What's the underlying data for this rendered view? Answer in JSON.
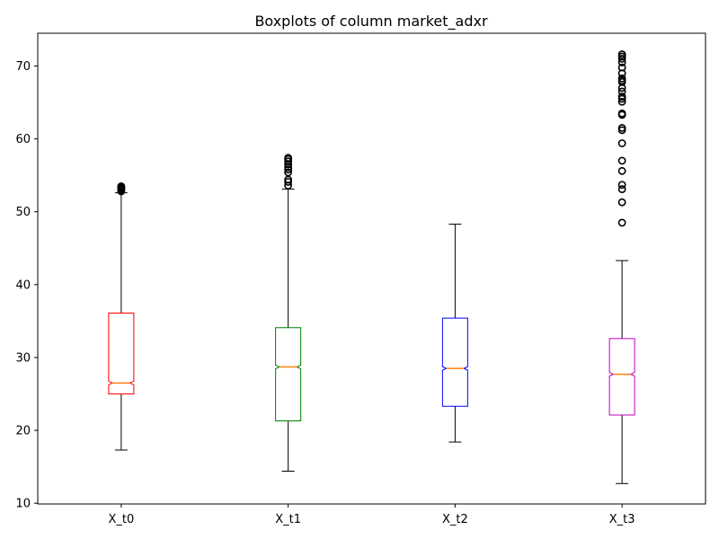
{
  "chart_data": {
    "type": "boxplot",
    "title": "Boxplots of column market_adxr",
    "xlabel": "",
    "ylabel": "",
    "ylim": [
      9.9,
      74.5
    ],
    "y_ticks": [
      10,
      20,
      30,
      40,
      50,
      60,
      70
    ],
    "grid": false,
    "notched": true,
    "median_color": "#ff7f0e",
    "series": [
      {
        "category": "X_t0",
        "color": "#ff0000",
        "whisker_low": 17.3,
        "q1": 25.0,
        "median": 26.5,
        "q3": 36.1,
        "whisker_high": 52.6,
        "outliers": [
          52.8,
          53.0,
          53.1,
          53.2,
          53.3,
          53.4,
          53.5
        ]
      },
      {
        "category": "X_t1",
        "color": "#008000",
        "whisker_low": 14.4,
        "q1": 21.3,
        "median": 28.7,
        "q3": 34.1,
        "whisker_high": 53.1,
        "outliers": [
          53.6,
          54.1,
          54.4,
          55.4,
          55.8,
          56.1,
          56.5,
          56.9,
          57.2,
          57.4
        ]
      },
      {
        "category": "X_t2",
        "color": "#0000ff",
        "whisker_low": 18.4,
        "q1": 23.3,
        "median": 28.5,
        "q3": 35.4,
        "whisker_high": 48.3,
        "outliers": []
      },
      {
        "category": "X_t3",
        "color": "#bf00bf",
        "whisker_low": 12.7,
        "q1": 22.1,
        "median": 27.7,
        "q3": 32.6,
        "whisker_high": 43.3,
        "outliers": [
          48.5,
          51.3,
          53.1,
          53.7,
          55.6,
          57.0,
          59.4,
          61.2,
          61.5,
          63.3,
          63.5,
          65.1,
          65.5,
          65.8,
          66.5,
          67.0,
          67.8,
          68.0,
          68.3,
          69.0,
          69.8,
          70.5,
          71.0,
          71.3,
          71.6
        ]
      }
    ]
  }
}
